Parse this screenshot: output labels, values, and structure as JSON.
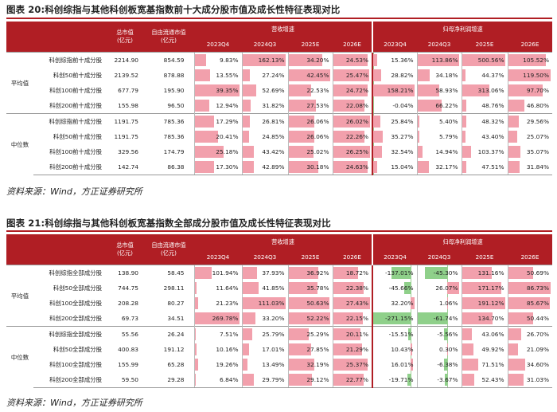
{
  "table1": {
    "title": "图表 20:科创综指与其他科创板宽基指数前十大成分股市值及成长性特征表现对比",
    "header": {
      "col_mcap": "总市值\n(亿元)",
      "col_float": "自由流通市值\n(亿元)",
      "group_rev": "营收增速",
      "group_np": "归母净利润增速",
      "periods_rev": [
        "2023Q4",
        "2024Q3",
        "2025E",
        "2026E"
      ],
      "periods_np": [
        "2023Q4",
        "2024Q3",
        "2025E",
        "2026E"
      ]
    },
    "groups": [
      {
        "label": "平均值",
        "rows": [
          {
            "name": "科创综指前十成分股",
            "mcap": "2214.90",
            "float": "854.59",
            "rev": [
              9.83,
              162.13,
              34.2,
              24.53
            ],
            "np": [
              15.36,
              113.86,
              500.56,
              105.52
            ]
          },
          {
            "name": "科创50前十成分股",
            "mcap": "2139.52",
            "float": "878.88",
            "rev": [
              13.55,
              27.24,
              42.45,
              25.47
            ],
            "np": [
              28.82,
              34.18,
              44.37,
              119.5
            ]
          },
          {
            "name": "科创100前十成分股",
            "mcap": "677.79",
            "float": "195.90",
            "rev": [
              39.35,
              52.69,
              22.53,
              24.72
            ],
            "np": [
              158.21,
              58.93,
              313.06,
              97.7
            ]
          },
          {
            "name": "科创200前十成分股",
            "mcap": "155.98",
            "float": "96.50",
            "rev": [
              12.94,
              31.82,
              27.53,
              22.08
            ],
            "np": [
              -0.04,
              66.22,
              48.76,
              46.8
            ]
          }
        ]
      },
      {
        "label": "中位数",
        "rows": [
          {
            "name": "科创综指前十成分股",
            "mcap": "1191.75",
            "float": "785.36",
            "rev": [
              17.29,
              26.81,
              26.06,
              26.02
            ],
            "np": [
              25.84,
              5.4,
              48.32,
              29.56
            ]
          },
          {
            "name": "科创50前十成分股",
            "mcap": "1191.75",
            "float": "785.36",
            "rev": [
              20.41,
              24.85,
              26.06,
              22.26
            ],
            "np": [
              35.27,
              5.79,
              43.4,
              25.07
            ]
          },
          {
            "name": "科创100前十成分股",
            "mcap": "329.56",
            "float": "174.79",
            "rev": [
              25.18,
              43.42,
              25.02,
              26.25
            ],
            "np": [
              32.54,
              14.94,
              103.37,
              35.07
            ]
          },
          {
            "name": "科创200前十成分股",
            "mcap": "142.74",
            "float": "86.38",
            "rev": [
              17.3,
              42.89,
              30.18,
              24.63
            ],
            "np": [
              15.04,
              32.17,
              47.51,
              31.84
            ]
          }
        ]
      }
    ],
    "source": "资料来源：Wind，方正证券研究所"
  },
  "table2": {
    "title": "图表 21:科创综指与其他科创板宽基指数全部成分股市值及成长性特征表现对比",
    "header": {
      "col_mcap": "总市值\n(亿元)",
      "col_float": "自由流通市值\n(亿元)",
      "group_rev": "营收增速",
      "group_np": "归母净利润增速",
      "periods_rev": [
        "2023Q4",
        "2024Q3",
        "2025E",
        "2026E"
      ],
      "periods_np": [
        "2023Q4",
        "2024Q3",
        "2025E",
        "2026E"
      ]
    },
    "groups": [
      {
        "label": "平均值",
        "rows": [
          {
            "name": "科创综指全部成分股",
            "mcap": "138.90",
            "float": "58.45",
            "rev": [
              101.94,
              37.93,
              36.92,
              18.72
            ],
            "np": [
              -137.01,
              -45.3,
              131.16,
              50.69
            ]
          },
          {
            "name": "科创50全部成分股",
            "mcap": "744.75",
            "float": "298.11",
            "rev": [
              11.64,
              41.85,
              35.78,
              22.38
            ],
            "np": [
              -45.66,
              26.07,
              171.17,
              86.73
            ]
          },
          {
            "name": "科创100全部成分股",
            "mcap": "208.28",
            "float": "80.27",
            "rev": [
              21.23,
              111.03,
              50.63,
              27.43
            ],
            "np": [
              32.2,
              1.06,
              191.12,
              85.67
            ]
          },
          {
            "name": "科创200全部成分股",
            "mcap": "69.73",
            "float": "34.51",
            "rev": [
              269.78,
              33.2,
              52.22,
              22.15
            ],
            "np": [
              -271.15,
              -61.74,
              134.7,
              50.44
            ]
          }
        ]
      },
      {
        "label": "中位数",
        "rows": [
          {
            "name": "科创综指全部成分股",
            "mcap": "55.56",
            "float": "26.24",
            "rev": [
              7.51,
              25.79,
              25.29,
              20.11
            ],
            "np": [
              -15.51,
              -5.56,
              43.06,
              26.7
            ]
          },
          {
            "name": "科创50全部成分股",
            "mcap": "400.83",
            "float": "191.12",
            "rev": [
              10.16,
              17.01,
              27.85,
              21.29
            ],
            "np": [
              10.43,
              0.3,
              49.92,
              21.09
            ]
          },
          {
            "name": "科创100全部成分股",
            "mcap": "155.99",
            "float": "65.28",
            "rev": [
              19.26,
              13.49,
              32.19,
              25.37
            ],
            "np": [
              16.01,
              -6.38,
              71.51,
              34.6
            ]
          },
          {
            "name": "科创200全部成分股",
            "mcap": "59.50",
            "float": "29.28",
            "rev": [
              6.84,
              29.79,
              29.12,
              22.77
            ],
            "np": [
              -19.71,
              -3.67,
              52.43,
              31.03
            ]
          }
        ]
      }
    ],
    "source": "资料来源：Wind，方正证券研究所"
  },
  "colors": {
    "header_red": "#b01e24",
    "bar_pos": "#f2a0ac",
    "bar_neg": "#8fd08a"
  }
}
